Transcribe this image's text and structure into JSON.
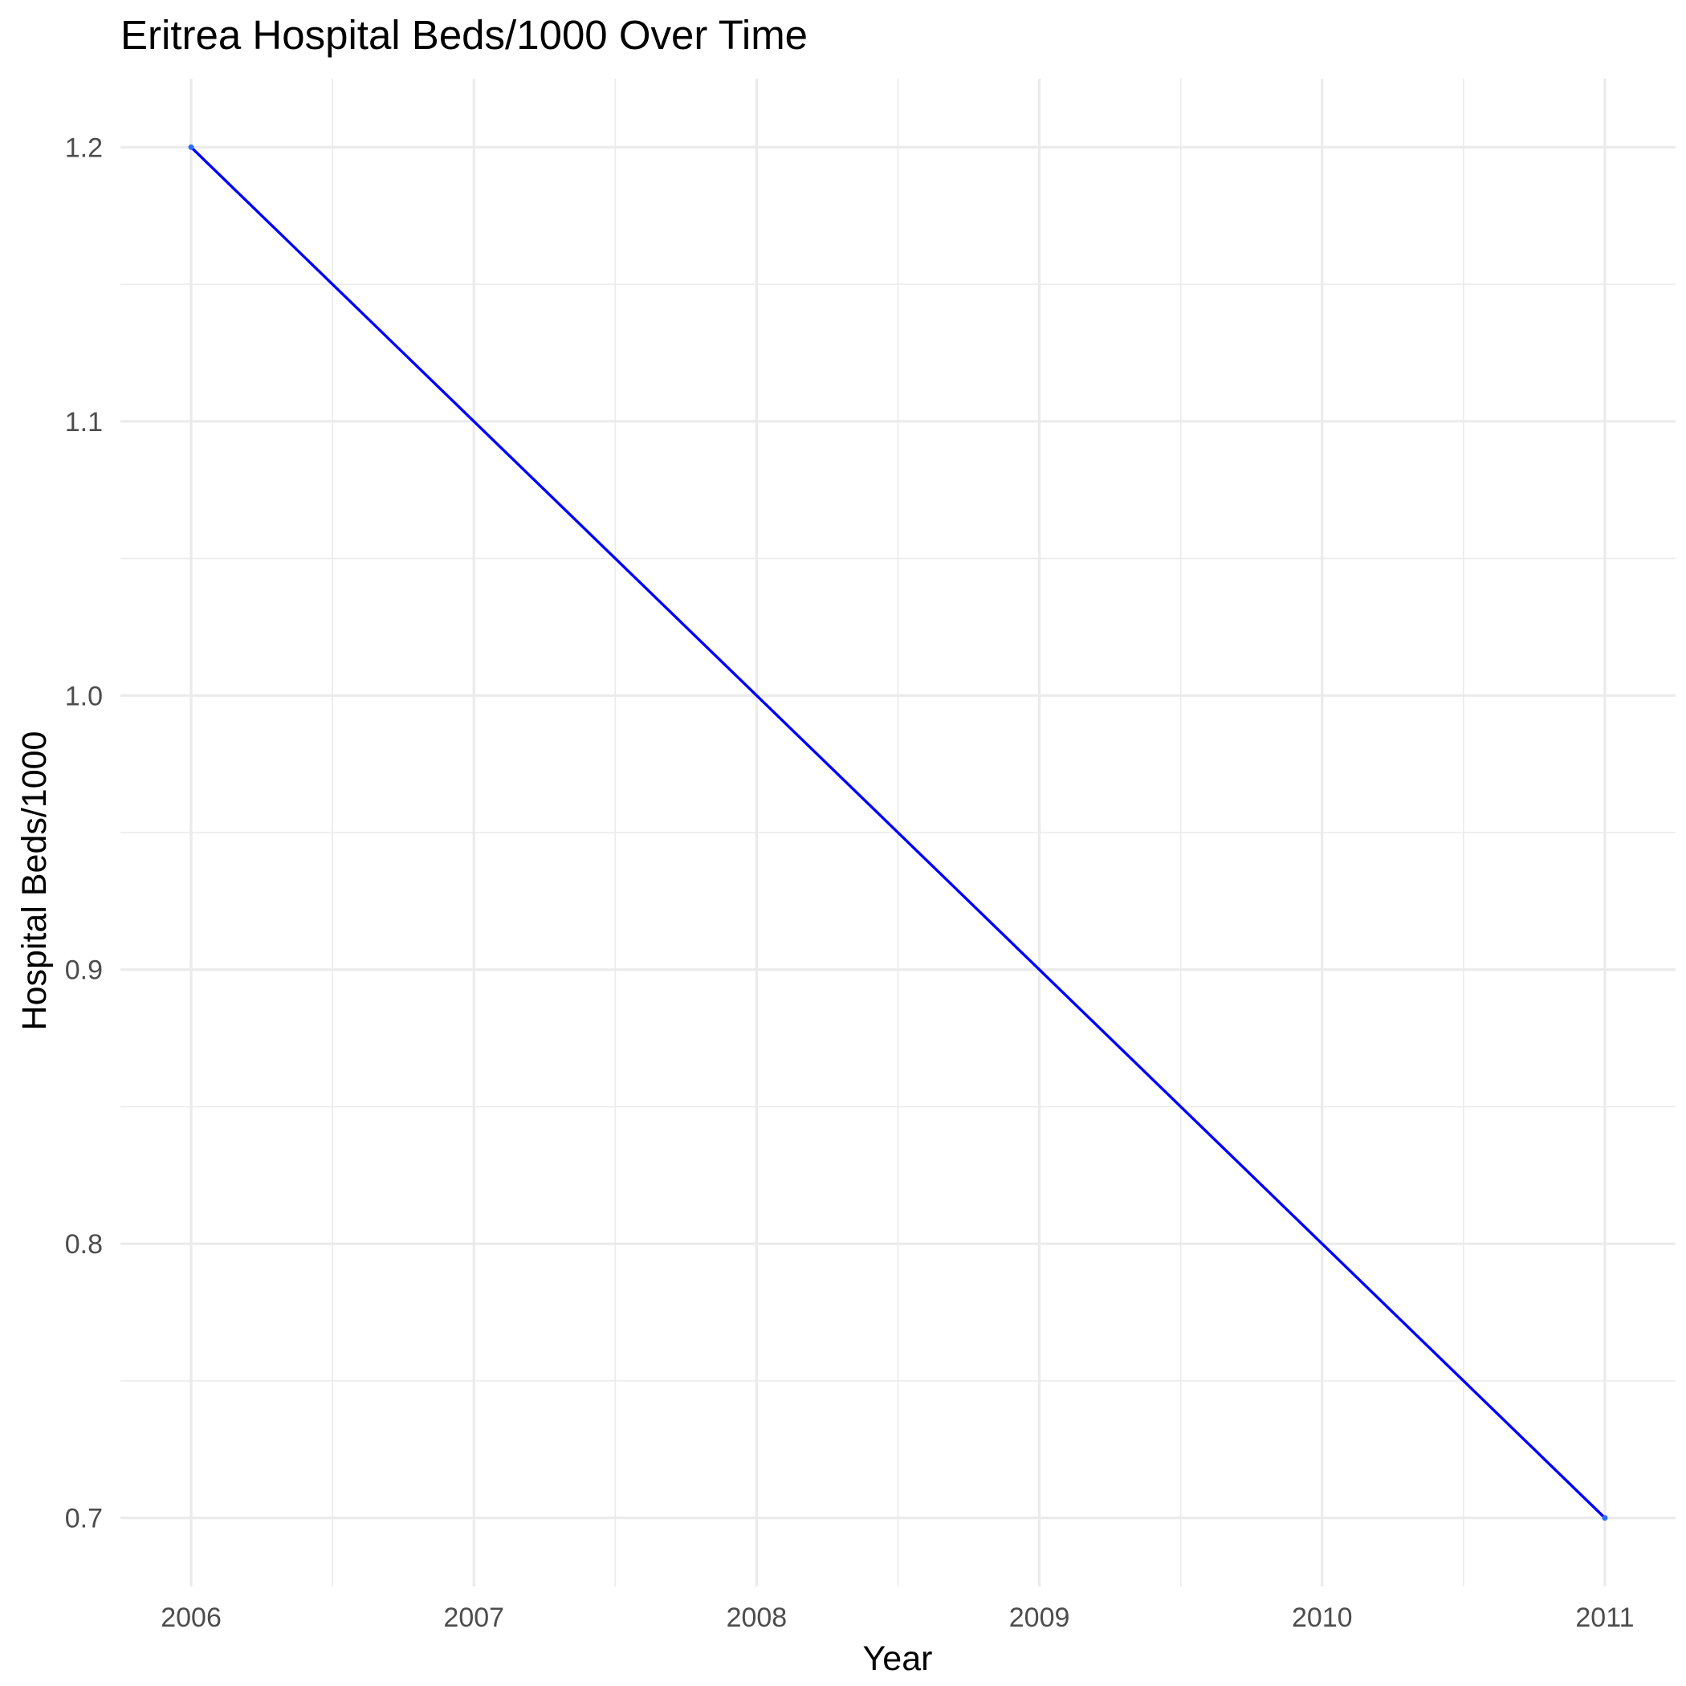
{
  "chart_data": {
    "type": "line",
    "title": "Eritrea Hospital Beds/1000 Over Time",
    "xlabel": "Year",
    "ylabel": "Hospital Beds/1000",
    "x": [
      2006,
      2011
    ],
    "series": [
      {
        "name": "Hospital Beds/1000",
        "x": [
          2006,
          2011
        ],
        "values": [
          1.2,
          0.7
        ],
        "color": "#0000ff"
      }
    ],
    "xlim": [
      2005.75,
      2011.25
    ],
    "ylim": [
      0.675,
      1.225
    ],
    "x_ticks": [
      2006,
      2007,
      2008,
      2009,
      2010,
      2011
    ],
    "x_tick_labels": [
      "2006",
      "2007",
      "2008",
      "2009",
      "2010",
      "2011"
    ],
    "y_ticks": [
      0.7,
      0.8,
      0.9,
      1.0,
      1.1,
      1.2
    ],
    "y_tick_labels": [
      "0.7",
      "0.8",
      "0.9",
      "1.0",
      "1.1",
      "1.2"
    ],
    "x_minor_ticks": [
      2006.5,
      2007.5,
      2008.5,
      2009.5,
      2010.5
    ],
    "y_minor_ticks": [
      0.75,
      0.85,
      0.95,
      1.05,
      1.15
    ],
    "grid": true,
    "legend": "none"
  }
}
